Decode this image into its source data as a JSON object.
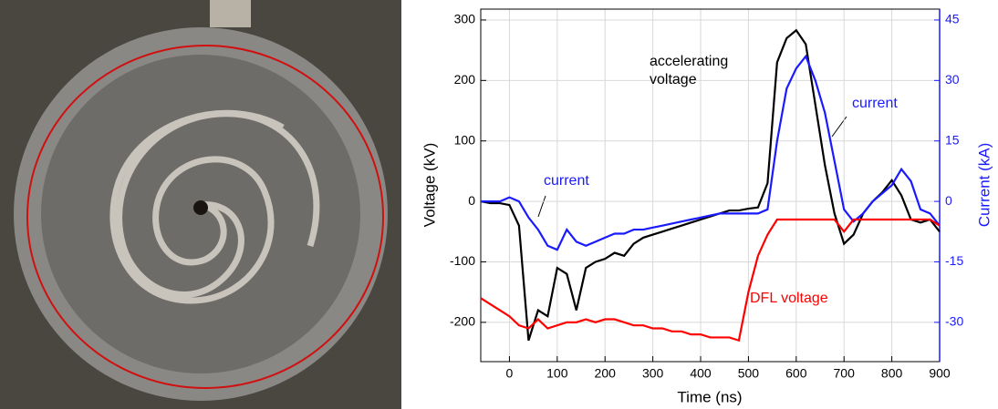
{
  "chart_data": {
    "type": "line",
    "x_label": "Time (ns)",
    "y_label": "Voltage (kV)",
    "y2_label": "Current (kA)",
    "x": [
      -60,
      -40,
      -20,
      0,
      20,
      40,
      60,
      80,
      100,
      120,
      140,
      160,
      180,
      200,
      220,
      240,
      260,
      280,
      300,
      320,
      340,
      360,
      380,
      400,
      420,
      440,
      460,
      480,
      500,
      520,
      540,
      560,
      580,
      600,
      620,
      640,
      660,
      680,
      700,
      720,
      740,
      760,
      780,
      800,
      820,
      840,
      860,
      880,
      900
    ],
    "series": [
      {
        "name": "accelerating voltage",
        "color": "#000000",
        "values": [
          0,
          -3,
          -3,
          -6,
          -40,
          -230,
          -180,
          -190,
          -110,
          -120,
          -180,
          -110,
          -100,
          -95,
          -85,
          -90,
          -70,
          -60,
          -55,
          -50,
          -45,
          -40,
          -35,
          -30,
          -25,
          -20,
          -15,
          -15,
          -12,
          -10,
          30,
          230,
          270,
          283,
          260,
          160,
          60,
          -20,
          -70,
          -55,
          -20,
          0,
          15,
          35,
          10,
          -30,
          -35,
          -30,
          -50
        ]
      },
      {
        "name": "current",
        "color": "#1a1aff",
        "axis": "y2",
        "values": [
          0,
          0,
          0,
          1,
          0,
          -4,
          -7,
          -11,
          -12,
          -7,
          -10,
          -11,
          -10,
          -9,
          -8,
          -8,
          -7,
          -7,
          -6.5,
          -6,
          -5.5,
          -5,
          -4.5,
          -4,
          -3.5,
          -3,
          -3,
          -3,
          -3,
          -3,
          -2,
          15,
          28,
          33,
          36,
          30,
          22,
          10,
          -2,
          -5,
          -3,
          0,
          2,
          4,
          8,
          5,
          -2,
          -3,
          -6
        ]
      },
      {
        "name": "DFL voltage",
        "color": "#ff0000",
        "values": [
          -160,
          -170,
          -180,
          -190,
          -205,
          -210,
          -195,
          -210,
          -205,
          -200,
          -200,
          -195,
          -200,
          -195,
          -195,
          -200,
          -205,
          -205,
          -210,
          -210,
          -215,
          -215,
          -220,
          -220,
          -225,
          -225,
          -225,
          -230,
          -150,
          -90,
          -55,
          -30,
          -30,
          -30,
          -30,
          -30,
          -30,
          -30,
          -50,
          -30,
          -30,
          -30,
          -30,
          -30,
          -30,
          -30,
          -30,
          -30,
          -40
        ]
      }
    ],
    "xlim": [
      -60,
      900
    ],
    "xticks": [
      0,
      100,
      200,
      300,
      400,
      500,
      600,
      700,
      800,
      900
    ],
    "ylim": [
      -265,
      318
    ],
    "yticks": [
      -200,
      -100,
      0,
      100,
      200,
      300
    ],
    "y2lim": [
      -39.75,
      47.7
    ],
    "y2ticks": [
      -30,
      -15,
      0,
      15,
      30,
      45
    ],
    "grid": true
  }
}
